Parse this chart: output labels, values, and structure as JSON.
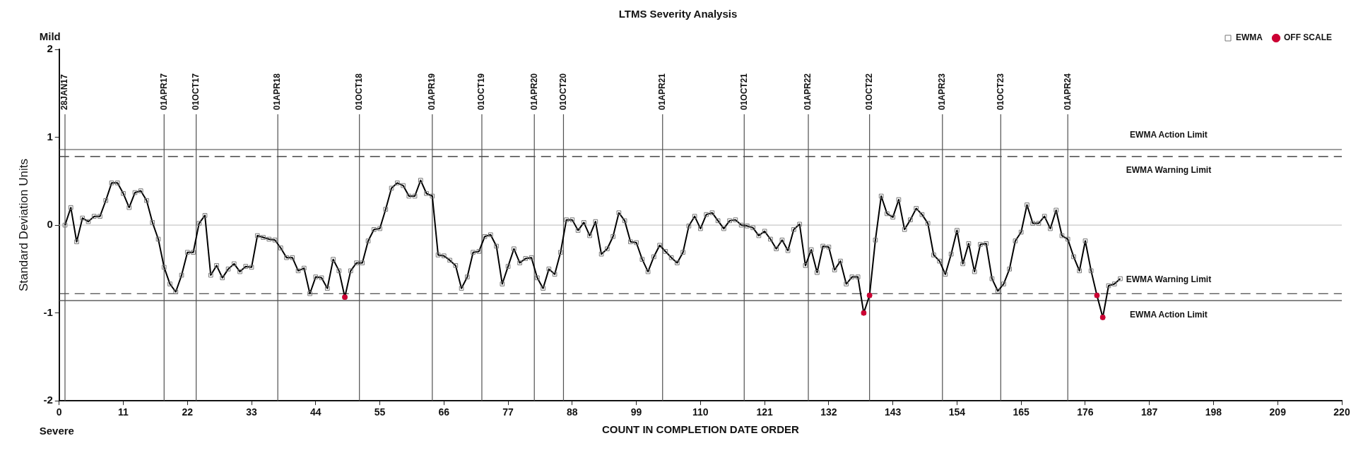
{
  "chart_data": {
    "type": "line",
    "title": "LTMS Severity Analysis",
    "xlabel": "COUNT IN COMPLETION DATE ORDER",
    "ylabel": "Standard Deviation Units",
    "annotations": [
      "Mild",
      "Severe"
    ],
    "xlim": [
      0,
      220
    ],
    "xticks": [
      0,
      11,
      22,
      33,
      44,
      55,
      66,
      77,
      88,
      99,
      110,
      121,
      132,
      143,
      154,
      165,
      176,
      187,
      198,
      209,
      220
    ],
    "ylim": [
      -2,
      2
    ],
    "yticks": [
      -2,
      -1,
      0,
      1,
      2
    ],
    "grid": false,
    "legend": "top right",
    "marker": "square",
    "series": [
      {
        "name": "EWMA",
        "color": "#000000",
        "x": [
          1,
          2,
          3,
          4,
          5,
          6,
          7,
          8,
          9,
          10,
          11,
          12,
          13,
          14,
          15,
          16,
          17,
          18,
          19,
          20,
          21,
          22,
          23,
          24,
          25,
          26,
          27,
          28,
          29,
          30,
          31,
          32,
          33,
          34,
          35,
          36,
          37,
          38,
          39,
          40,
          41,
          42,
          43,
          44,
          45,
          46,
          47,
          48,
          49,
          50,
          51,
          52,
          53,
          54,
          55,
          56,
          57,
          58,
          59,
          60,
          61,
          62,
          63,
          64,
          65,
          66,
          67,
          68,
          69,
          70,
          71,
          72,
          73,
          74,
          75,
          76,
          77,
          78,
          79,
          80,
          81,
          82,
          83,
          84,
          85,
          86,
          87,
          88,
          89,
          90,
          91,
          92,
          93,
          94,
          95,
          96,
          97,
          98,
          99,
          100,
          101,
          102,
          103,
          104,
          105,
          106,
          107,
          108,
          109,
          110,
          111,
          112,
          113,
          114,
          115,
          116,
          117,
          118,
          119,
          120,
          121,
          122,
          123,
          124,
          125,
          126,
          127,
          128,
          129,
          130,
          131,
          132,
          133,
          134,
          135,
          136,
          137,
          138,
          139,
          140,
          141,
          142,
          143,
          144,
          145,
          146,
          147,
          148,
          149,
          150,
          151,
          152,
          153,
          154,
          155,
          156,
          157,
          158,
          159,
          160,
          161,
          162,
          163,
          164,
          165,
          166,
          167,
          168,
          169,
          170,
          171,
          172,
          173,
          174,
          175,
          176,
          177,
          178,
          179,
          180,
          181,
          182
        ],
        "values": [
          0.0,
          0.2,
          -0.19,
          0.08,
          0.04,
          0.1,
          0.1,
          0.28,
          0.48,
          0.48,
          0.36,
          0.2,
          0.37,
          0.39,
          0.28,
          0.03,
          -0.16,
          -0.48,
          -0.67,
          -0.76,
          -0.57,
          -0.31,
          -0.31,
          0.02,
          0.11,
          -0.57,
          -0.46,
          -0.6,
          -0.5,
          -0.44,
          -0.53,
          -0.47,
          -0.48,
          -0.12,
          -0.14,
          -0.16,
          -0.17,
          -0.26,
          -0.37,
          -0.37,
          -0.52,
          -0.49,
          -0.78,
          -0.59,
          -0.6,
          -0.72,
          -0.39,
          -0.52,
          -0.82,
          -0.52,
          -0.43,
          -0.43,
          -0.18,
          -0.05,
          -0.04,
          0.18,
          0.42,
          0.48,
          0.45,
          0.33,
          0.33,
          0.51,
          0.36,
          0.33,
          -0.34,
          -0.35,
          -0.4,
          -0.46,
          -0.72,
          -0.59,
          -0.31,
          -0.3,
          -0.13,
          -0.11,
          -0.24,
          -0.67,
          -0.47,
          -0.27,
          -0.43,
          -0.38,
          -0.37,
          -0.6,
          -0.72,
          -0.5,
          -0.56,
          -0.31,
          0.06,
          0.06,
          -0.06,
          0.03,
          -0.12,
          0.04,
          -0.33,
          -0.27,
          -0.13,
          0.14,
          0.05,
          -0.19,
          -0.2,
          -0.39,
          -0.53,
          -0.36,
          -0.23,
          -0.3,
          -0.37,
          -0.43,
          -0.31,
          -0.01,
          0.1,
          -0.04,
          0.12,
          0.14,
          0.05,
          -0.04,
          0.05,
          0.06,
          0.0,
          -0.01,
          -0.03,
          -0.12,
          -0.07,
          -0.16,
          -0.27,
          -0.17,
          -0.29,
          -0.05,
          0.01,
          -0.46,
          -0.28,
          -0.54,
          -0.24,
          -0.25,
          -0.51,
          -0.41,
          -0.67,
          -0.59,
          -0.59,
          -1.0,
          -0.8,
          -0.17,
          0.33,
          0.13,
          0.09,
          0.29,
          -0.05,
          0.06,
          0.19,
          0.12,
          0.02,
          -0.34,
          -0.41,
          -0.56,
          -0.33,
          -0.06,
          -0.44,
          -0.21,
          -0.53,
          -0.22,
          -0.21,
          -0.61,
          -0.75,
          -0.67,
          -0.5,
          -0.18,
          -0.08,
          0.23,
          0.02,
          0.02,
          0.1,
          -0.04,
          0.17,
          -0.12,
          -0.16,
          -0.36,
          -0.52,
          -0.18,
          -0.52,
          -0.8,
          -1.05,
          -0.69,
          -0.67,
          -0.61
        ]
      },
      {
        "name": "OFF SCALE",
        "type": "scatter",
        "marker": "circle",
        "color": "#cc0033",
        "x": [
          49,
          138,
          139,
          178,
          179
        ],
        "values": [
          -0.82,
          -1.0,
          -0.8,
          -0.8,
          -1.05
        ]
      }
    ],
    "ref_lines": [
      {
        "axis": "y",
        "value": 0,
        "label": null,
        "color": "#c8c8c8",
        "line_style": "solid"
      },
      {
        "axis": "y",
        "value": 0.86,
        "label": "EWMA Action Limit",
        "color": "#404040",
        "line_style": "solid"
      },
      {
        "axis": "y",
        "value": 0.78,
        "label": "EWMA Warning Limit",
        "color": "#202020",
        "line_style": "dashed"
      },
      {
        "axis": "y",
        "value": -0.78,
        "label": "EWMA Warning Limit",
        "color": "#202020",
        "line_style": "dashed"
      },
      {
        "axis": "y",
        "value": -0.86,
        "label": "EWMA Action Limit",
        "color": "#404040",
        "line_style": "solid"
      },
      {
        "axis": "x",
        "value": 1,
        "label": "28JAN17",
        "color": "#505050"
      },
      {
        "axis": "x",
        "value": 18,
        "label": "01APR17",
        "color": "#505050"
      },
      {
        "axis": "x",
        "value": 23.5,
        "label": "01OCT17",
        "color": "#505050"
      },
      {
        "axis": "x",
        "value": 37.5,
        "label": "01APR18",
        "color": "#505050"
      },
      {
        "axis": "x",
        "value": 51.5,
        "label": "01OCT18",
        "color": "#505050"
      },
      {
        "axis": "x",
        "value": 64,
        "label": "01APR19",
        "color": "#505050"
      },
      {
        "axis": "x",
        "value": 72.5,
        "label": "01OCT19",
        "color": "#505050"
      },
      {
        "axis": "x",
        "value": 81.5,
        "label": "01APR20",
        "color": "#505050"
      },
      {
        "axis": "x",
        "value": 86.5,
        "label": "01OCT20",
        "color": "#505050"
      },
      {
        "axis": "x",
        "value": 103.5,
        "label": "01APR21",
        "color": "#505050"
      },
      {
        "axis": "x",
        "value": 117.5,
        "label": "01OCT21",
        "color": "#505050"
      },
      {
        "axis": "x",
        "value": 128.5,
        "label": "01APR22",
        "color": "#505050"
      },
      {
        "axis": "x",
        "value": 139,
        "label": "01OCT22",
        "color": "#505050"
      },
      {
        "axis": "x",
        "value": 151.5,
        "label": "01APR23",
        "color": "#505050"
      },
      {
        "axis": "x",
        "value": 161.5,
        "label": "01OCT23",
        "color": "#505050"
      },
      {
        "axis": "x",
        "value": 173,
        "label": "01APR24",
        "color": "#505050"
      }
    ]
  }
}
